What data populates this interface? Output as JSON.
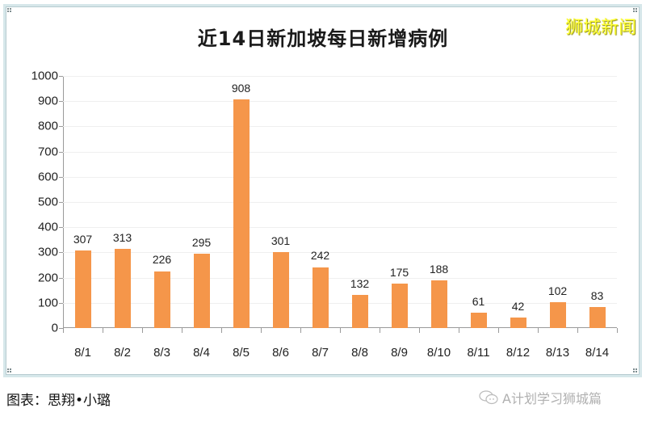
{
  "title": "近14日新加坡每日新增病例",
  "brand": "狮城新闻",
  "caption": "图表：思翔•小璐",
  "watermark": "A计划学习狮城篇",
  "colors": {
    "bar": "#f5964a",
    "brand": "#ffff33",
    "frame": "#d6e7ea"
  },
  "chart_data": {
    "type": "bar",
    "title": "近14日新加坡每日新增病例",
    "xlabel": "",
    "ylabel": "",
    "categories": [
      "8/1",
      "8/2",
      "8/3",
      "8/4",
      "8/5",
      "8/6",
      "8/7",
      "8/8",
      "8/9",
      "8/10",
      "8/11",
      "8/12",
      "8/13",
      "8/14"
    ],
    "values": [
      307,
      313,
      226,
      295,
      908,
      301,
      242,
      132,
      175,
      188,
      61,
      42,
      102,
      83
    ],
    "ylim": [
      0,
      1000
    ],
    "yticks": [
      0,
      100,
      200,
      300,
      400,
      500,
      600,
      700,
      800,
      900,
      1000
    ],
    "grid": true,
    "data_labels": true,
    "legend": null
  }
}
